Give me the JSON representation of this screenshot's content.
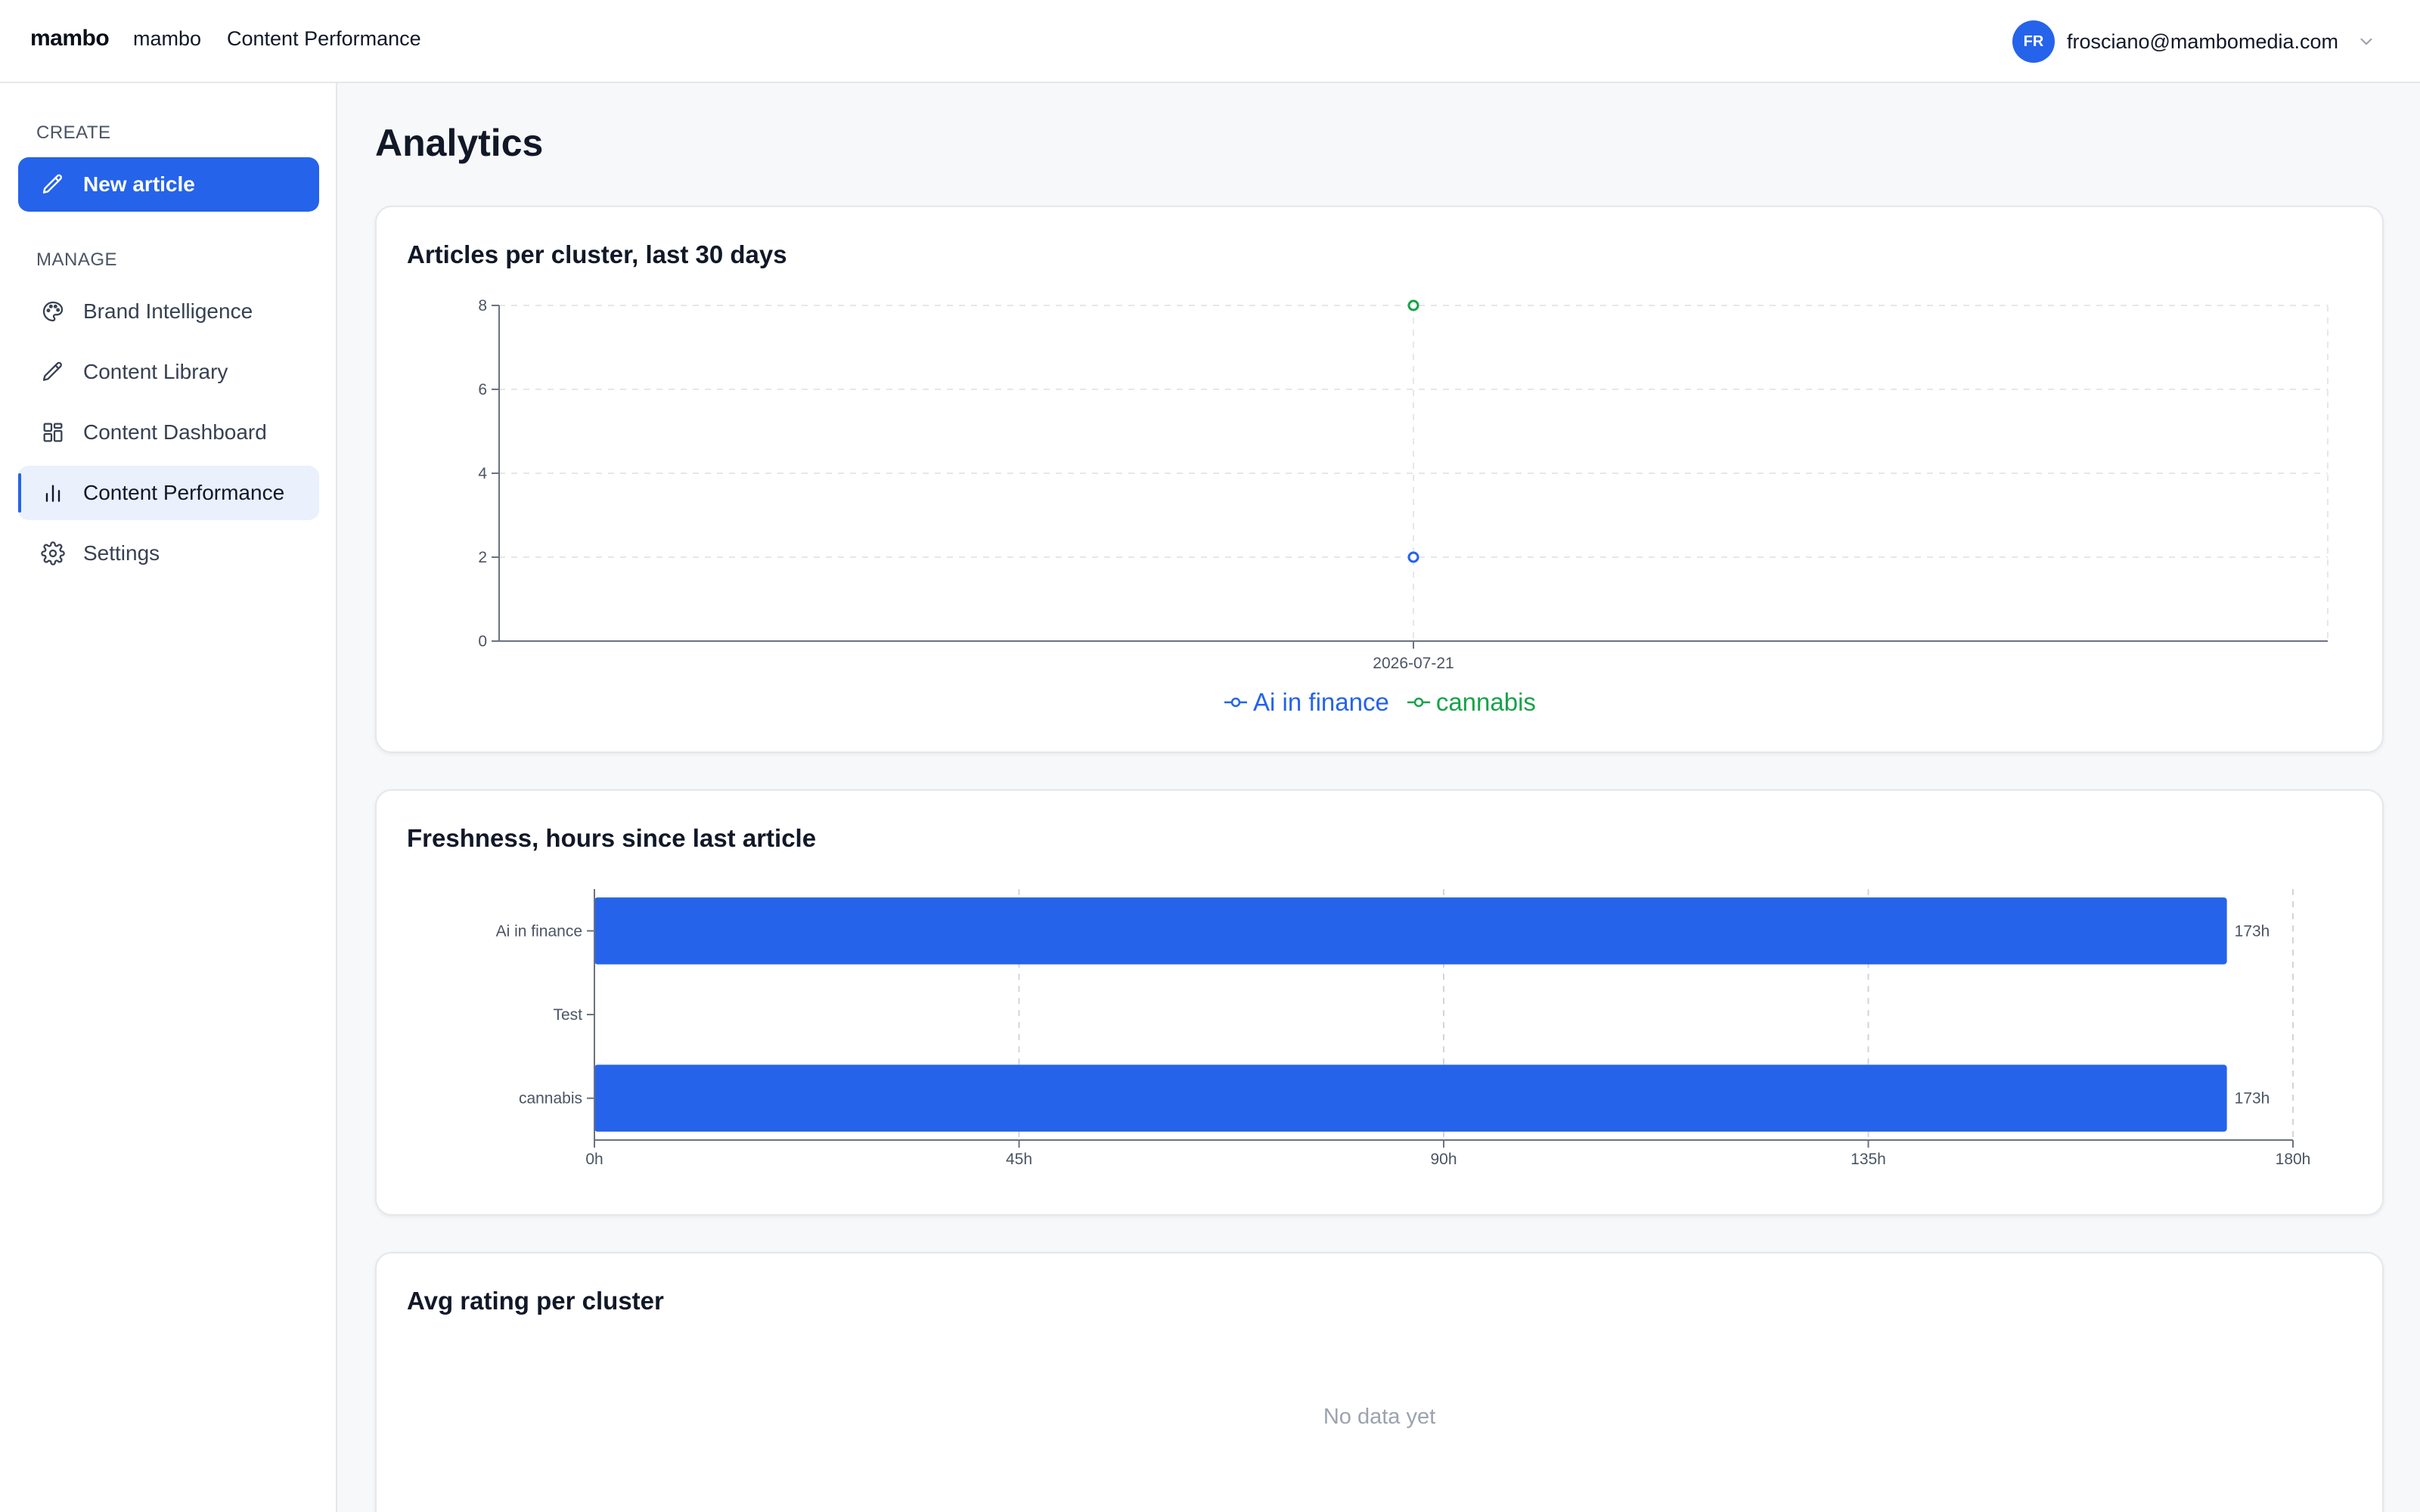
{
  "topbar": {
    "brand": "mambo",
    "workspace": "mambo",
    "current_page": "Content Performance",
    "user": {
      "initials": "FR",
      "email": "frosciano@mambomedia.com"
    }
  },
  "sidebar": {
    "create_label": "CREATE",
    "new_article_label": "New article",
    "manage_label": "MANAGE",
    "items": [
      {
        "label": "Brand Intelligence",
        "icon": "palette-icon",
        "active": false
      },
      {
        "label": "Content Library",
        "icon": "pencil-icon",
        "active": false
      },
      {
        "label": "Content Dashboard",
        "icon": "dashboard-grid-icon",
        "active": false
      },
      {
        "label": "Content Performance",
        "icon": "bar-chart-icon",
        "active": true
      },
      {
        "label": "Settings",
        "icon": "gear-icon",
        "active": false
      }
    ]
  },
  "main": {
    "title": "Analytics",
    "cards": {
      "articles": {
        "title": "Articles per cluster, last 30 days"
      },
      "freshness": {
        "title": "Freshness, hours since last article"
      },
      "rating": {
        "title": "Avg rating per cluster",
        "empty_text": "No data yet"
      }
    }
  },
  "colors": {
    "accent": "#2563eb",
    "series_blue": "#2563eb",
    "series_green": "#16a34a",
    "active_nav_bg": "#eaf0fc"
  },
  "chart_data": [
    {
      "type": "line",
      "title": "Articles per cluster, last 30 days",
      "x": [
        "2026-07-21"
      ],
      "ylim": [
        0,
        8
      ],
      "yticks": [
        0,
        2,
        4,
        6,
        8
      ],
      "grid": true,
      "legend": "bottom-center",
      "series": [
        {
          "name": "Ai in finance",
          "values": [
            2
          ],
          "color": "#2563eb"
        },
        {
          "name": "cannabis",
          "values": [
            8
          ],
          "color": "#16a34a"
        }
      ]
    },
    {
      "type": "bar",
      "orientation": "horizontal",
      "title": "Freshness, hours since last article",
      "categories": [
        "Ai in finance",
        "Test",
        "cannabis"
      ],
      "values": [
        173,
        null,
        173
      ],
      "value_labels": [
        "173h",
        "",
        "173h"
      ],
      "xlim": [
        0,
        180
      ],
      "xticks": [
        "0h",
        "45h",
        "90h",
        "135h",
        "180h"
      ],
      "xtick_values": [
        0,
        45,
        90,
        135,
        180
      ],
      "grid": true,
      "color": "#2563eb"
    },
    {
      "type": "bar",
      "title": "Avg rating per cluster",
      "categories": [],
      "values": [],
      "empty_text": "No data yet"
    }
  ]
}
